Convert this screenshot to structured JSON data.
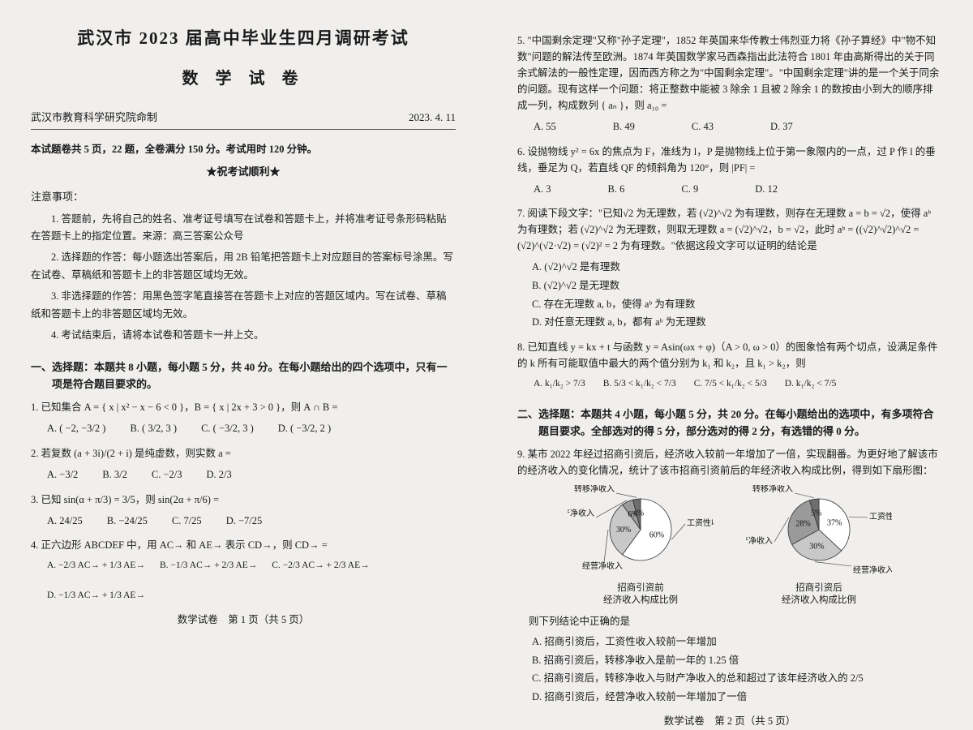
{
  "title_main": "武汉市 2023 届高中毕业生四月调研考试",
  "title_sub": "数 学 试 卷",
  "issuer": "武汉市教育科学研究院命制",
  "date": "2023. 4. 11",
  "exam_info": "本试题卷共 5 页，22 题，全卷满分 150 分。考试用时 120 分钟。",
  "banner": "★祝考试顺利★",
  "notice_title": "注意事项：",
  "notices": [
    "1. 答题前，先将自己的姓名、准考证号填写在试卷和答题卡上，并将准考证号条形码粘贴在答题卡上的指定位置。来源：高三答案公众号",
    "2. 选择题的作答：每小题选出答案后，用 2B 铅笔把答题卡上对应题目的答案标号涂黑。写在试卷、草稿纸和答题卡上的非答题区域均无效。",
    "3. 非选择题的作答：用黑色签字笔直接答在答题卡上对应的答题区域内。写在试卷、草稿纸和答题卡上的非答题区域均无效。",
    "4. 考试结束后，请将本试卷和答题卡一并上交。"
  ],
  "section1_title": "一、选择题：本题共 8 小题，每小题 5 分，共 40 分。在每小题给出的四个选项中，只有一项是符合题目要求的。",
  "q1": {
    "stem": "1. 已知集合 A = { x | x² − x − 6 < 0 }，B = { x | 2x + 3 > 0 }，则 A ∩ B =",
    "opts": [
      "A. ( −2, −3/2 )",
      "B. ( 3/2, 3 )",
      "C. ( −3/2, 3 )",
      "D. ( −3/2, 2 )"
    ]
  },
  "q2": {
    "stem": "2. 若复数 (a + 3i)/(2 + i) 是纯虚数，则实数 a =",
    "opts": [
      "A. −3/2",
      "B. 3/2",
      "C. −2/3",
      "D. 2/3"
    ]
  },
  "q3": {
    "stem": "3. 已知 sin(α + π/3) = 3/5，则 sin(2α + π/6) =",
    "opts": [
      "A. 24/25",
      "B. −24/25",
      "C. 7/25",
      "D. −7/25"
    ]
  },
  "q4": {
    "stem": "4. 正六边形 ABCDEF 中，用 AC→ 和 AE→ 表示 CD→，则 CD→ =",
    "opts": [
      "A. −2/3 AC→ + 1/3 AE→",
      "B. −1/3 AC→ + 2/3 AE→",
      "C. −2/3 AC→ + 2/3 AE→",
      "D. −1/3 AC→ + 1/3 AE→"
    ]
  },
  "footer1": "数学试卷　第 1 页（共 5 页）",
  "q5": {
    "stem": "5. \"中国剩余定理\"又称\"孙子定理\"，1852 年英国来华传教士伟烈亚力将《孙子算经》中\"物不知数\"问题的解法传至欧洲。1874 年英国数学家马西森指出此法符合 1801 年由高斯得出的关于同余式解法的一般性定理，因而西方称之为\"中国剩余定理\"。\"中国剩余定理\"讲的是一个关于同余的问题。现有这样一个问题：将正整数中能被 3 除余 1 且被 2 除余 1 的数按由小到大的顺序排成一列，构成数列 { aₙ }，则 a₁₀ =",
    "opts": [
      "A. 55",
      "B. 49",
      "C. 43",
      "D. 37"
    ]
  },
  "q6": {
    "stem": "6. 设抛物线 y² = 6x 的焦点为 F，准线为 l，P 是抛物线上位于第一象限内的一点，过 P 作 l 的垂线，垂足为 Q，若直线 QF 的倾斜角为 120°，则 |PF| =",
    "opts": [
      "A. 3",
      "B. 6",
      "C. 9",
      "D. 12"
    ]
  },
  "q7": {
    "stem": "7. 阅读下段文字：\"已知√2 为无理数，若 (√2)^√2 为有理数，则存在无理数 a = b = √2，使得 aᵇ 为有理数；若 (√2)^√2 为无理数，则取无理数 a = (√2)^√2，b = √2，此时 aᵇ = ((√2)^√2)^√2 = (√2)^(√2·√2) = (√2)² = 2 为有理数。\"依据这段文字可以证明的结论是",
    "opts": [
      "A. (√2)^√2 是有理数",
      "B. (√2)^√2 是无理数",
      "C. 存在无理数 a, b，使得 aᵇ 为有理数",
      "D. 对任意无理数 a, b，都有 aᵇ 为无理数"
    ]
  },
  "q8": {
    "stem": "8. 已知直线 y = kx + t 与函数 y = Asin(ωx + φ)（A > 0, ω > 0）的图象恰有两个切点，设满足条件的 k 所有可能取值中最大的两个值分别为 k₁ 和 k₂，且 k₁ > k₂，则",
    "opts": [
      "A. k₁/k₂ > 7/3",
      "B. 5/3 < k₁/k₂ < 7/3",
      "C. 7/5 < k₁/k₂ < 5/3",
      "D. k₁/k₂ < 7/5"
    ]
  },
  "section2_title": "二、选择题：本题共 4 小题，每小题 5 分，共 20 分。在每小题给出的选项中，有多项符合题目要求。全部选对的得 5 分，部分选对的得 2 分，有选错的得 0 分。",
  "q9": {
    "stem": "9. 某市 2022 年经过招商引资后，经济收入较前一年增加了一倍，实现翻番。为更好地了解该市的经济收入的变化情况，统计了该市招商引资前后的年经济收入构成比例，得到如下扇形图：",
    "pie1": {
      "caption": "招商引资前\n经济收入构成比例",
      "slices": [
        {
          "label": "工资性收入",
          "value": 60,
          "color": "#ffffff"
        },
        {
          "label": "经营净收入",
          "value": 30,
          "color": "#c8c8c8"
        },
        {
          "label": "财产净收入",
          "value": 6,
          "color": "#9a9a9a"
        },
        {
          "label": "转移净收入",
          "value": 4,
          "color": "#6e6e6e"
        }
      ]
    },
    "pie2": {
      "caption": "招商引资后\n经济收入构成比例",
      "slices": [
        {
          "label": "工资性收入",
          "value": 37,
          "color": "#ffffff"
        },
        {
          "label": "经营净收入",
          "value": 30,
          "color": "#c8c8c8"
        },
        {
          "label": "财产净收入",
          "value": 28,
          "color": "#9a9a9a"
        },
        {
          "label": "转移净收入",
          "value": 5,
          "color": "#6e6e6e"
        }
      ]
    },
    "tail": "则下列结论中正确的是",
    "opts": [
      "A. 招商引资后，工资性收入较前一年增加",
      "B. 招商引资后，转移净收入是前一年的 1.25 倍",
      "C. 招商引资后，转移净收入与财产净收入的总和超过了该年经济收入的 2/5",
      "D. 招商引资后，经营净收入较前一年增加了一倍"
    ]
  },
  "footer2": "数学试卷　第 2 页（共 5 页）"
}
